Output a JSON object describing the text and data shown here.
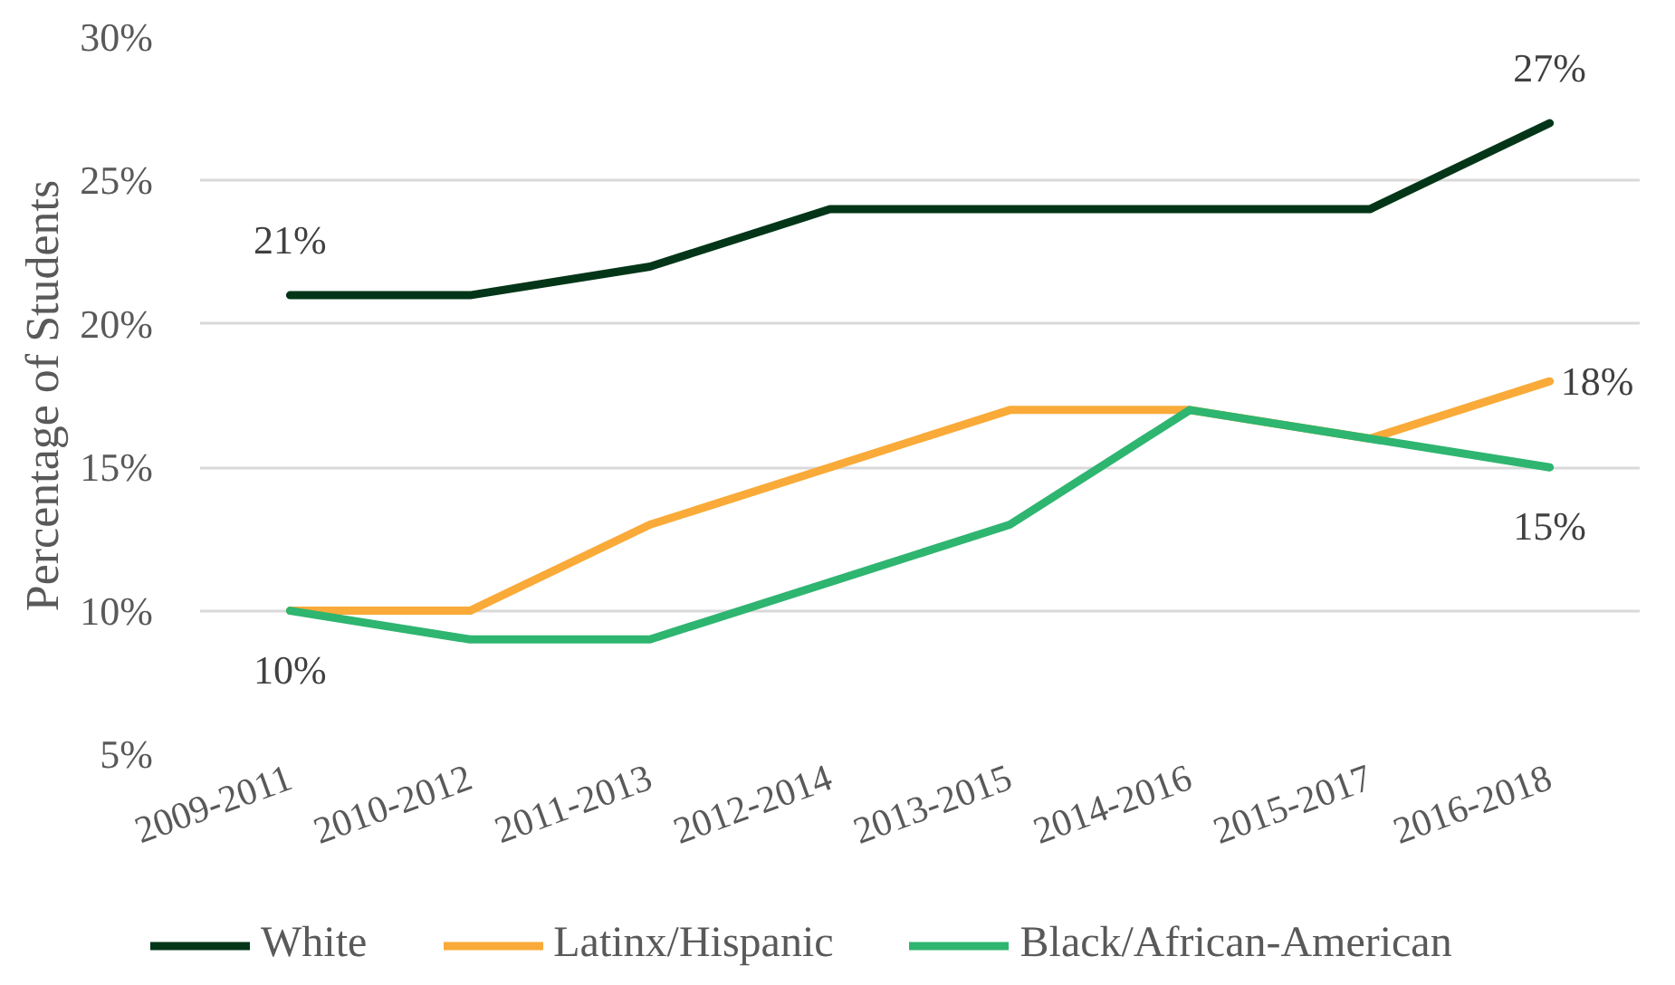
{
  "chart_data": {
    "type": "line",
    "ylabel": "Percentage of Students",
    "categories": [
      "2009-2011",
      "2010-2012",
      "2011-2013",
      "2012-2014",
      "2013-2015",
      "2014-2016",
      "2015-2017",
      "2016-2018"
    ],
    "series": [
      {
        "name": "White",
        "color": "#033618",
        "values": [
          21,
          21,
          22,
          24,
          24,
          24,
          24,
          27
        ],
        "value_labels": [
          "21%",
          null,
          null,
          null,
          null,
          null,
          null,
          "27%"
        ]
      },
      {
        "name": "Latinx/Hispanic",
        "color": "#f9aa38",
        "values": [
          10,
          10,
          13,
          15,
          17,
          17,
          16,
          18
        ],
        "value_labels": [
          null,
          null,
          null,
          null,
          null,
          null,
          null,
          "18%"
        ]
      },
      {
        "name": "Black/African-American",
        "color": "#2eb570",
        "values": [
          10,
          9,
          9,
          11,
          13,
          17,
          16,
          15
        ],
        "value_labels": [
          "10%",
          null,
          null,
          null,
          null,
          null,
          null,
          "15%"
        ]
      }
    ],
    "ylim": [
      5,
      30
    ],
    "yticks": [
      {
        "value": 5,
        "label": "5%"
      },
      {
        "value": 10,
        "label": "10%"
      },
      {
        "value": 15,
        "label": "15%"
      },
      {
        "value": 20,
        "label": "20%"
      },
      {
        "value": 25,
        "label": "25%"
      },
      {
        "value": 30,
        "label": "30%"
      }
    ],
    "grid": "y",
    "legend": "bottom",
    "line_style": "solid"
  }
}
